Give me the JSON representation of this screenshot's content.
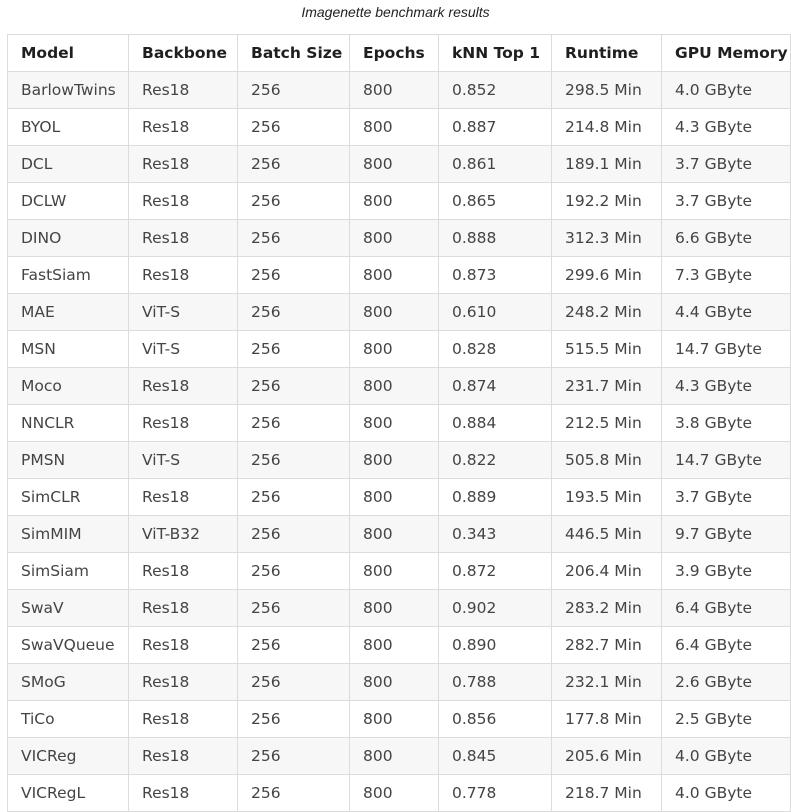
{
  "caption": "Imagenette benchmark results",
  "table": {
    "headers": [
      "Model",
      "Backbone",
      "Batch Size",
      "Epochs",
      "kNN Top 1",
      "Runtime",
      "GPU Memory"
    ],
    "rows": [
      [
        "BarlowTwins",
        "Res18",
        "256",
        "800",
        "0.852",
        "298.5 Min",
        "4.0 GByte"
      ],
      [
        "BYOL",
        "Res18",
        "256",
        "800",
        "0.887",
        "214.8 Min",
        "4.3 GByte"
      ],
      [
        "DCL",
        "Res18",
        "256",
        "800",
        "0.861",
        "189.1 Min",
        "3.7 GByte"
      ],
      [
        "DCLW",
        "Res18",
        "256",
        "800",
        "0.865",
        "192.2 Min",
        "3.7 GByte"
      ],
      [
        "DINO",
        "Res18",
        "256",
        "800",
        "0.888",
        "312.3 Min",
        "6.6 GByte"
      ],
      [
        "FastSiam",
        "Res18",
        "256",
        "800",
        "0.873",
        "299.6 Min",
        "7.3 GByte"
      ],
      [
        "MAE",
        "ViT-S",
        "256",
        "800",
        "0.610",
        "248.2 Min",
        "4.4 GByte"
      ],
      [
        "MSN",
        "ViT-S",
        "256",
        "800",
        "0.828",
        "515.5 Min",
        "14.7 GByte"
      ],
      [
        "Moco",
        "Res18",
        "256",
        "800",
        "0.874",
        "231.7 Min",
        "4.3 GByte"
      ],
      [
        "NNCLR",
        "Res18",
        "256",
        "800",
        "0.884",
        "212.5 Min",
        "3.8 GByte"
      ],
      [
        "PMSN",
        "ViT-S",
        "256",
        "800",
        "0.822",
        "505.8 Min",
        "14.7 GByte"
      ],
      [
        "SimCLR",
        "Res18",
        "256",
        "800",
        "0.889",
        "193.5 Min",
        "3.7 GByte"
      ],
      [
        "SimMIM",
        "ViT-B32",
        "256",
        "800",
        "0.343",
        "446.5 Min",
        "9.7 GByte"
      ],
      [
        "SimSiam",
        "Res18",
        "256",
        "800",
        "0.872",
        "206.4 Min",
        "3.9 GByte"
      ],
      [
        "SwaV",
        "Res18",
        "256",
        "800",
        "0.902",
        "283.2 Min",
        "6.4 GByte"
      ],
      [
        "SwaVQueue",
        "Res18",
        "256",
        "800",
        "0.890",
        "282.7 Min",
        "6.4 GByte"
      ],
      [
        "SMoG",
        "Res18",
        "256",
        "800",
        "0.788",
        "232.1 Min",
        "2.6 GByte"
      ],
      [
        "TiCo",
        "Res18",
        "256",
        "800",
        "0.856",
        "177.8 Min",
        "2.5 GByte"
      ],
      [
        "VICReg",
        "Res18",
        "256",
        "800",
        "0.845",
        "205.6 Min",
        "4.0 GByte"
      ],
      [
        "VICRegL",
        "Res18",
        "256",
        "800",
        "0.778",
        "218.7 Min",
        "4.0 GByte"
      ]
    ]
  }
}
